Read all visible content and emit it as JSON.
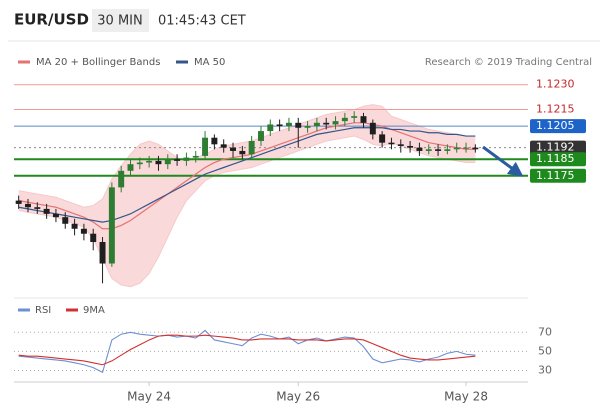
{
  "header": {
    "symbol": "EUR/USD",
    "timeframe": "30 MIN",
    "time": "01:45:43 CET"
  },
  "chart_data": {
    "type": "candlestick",
    "credit": "Research © 2019 Trading Central",
    "categories": [
      null,
      null,
      null,
      null,
      null,
      null,
      null,
      null,
      null,
      null,
      null,
      null,
      null,
      null,
      "May 24",
      null,
      null,
      null,
      null,
      null,
      null,
      null,
      null,
      null,
      null,
      null,
      null,
      null,
      null,
      null,
      "May 26",
      null,
      null,
      null,
      null,
      null,
      null,
      null,
      null,
      null,
      null,
      null,
      null,
      null,
      null,
      null,
      null,
      null,
      "May 28",
      null
    ],
    "open": [
      1.116,
      1.1158,
      1.1156,
      1.1155,
      1.1152,
      1.115,
      1.1146,
      1.1143,
      1.114,
      1.1135,
      1.1122,
      1.1168,
      1.1178,
      1.1182,
      1.1183,
      1.1184,
      1.1182,
      1.1185,
      1.1184,
      1.1186,
      1.1187,
      1.1198,
      1.1194,
      1.1192,
      1.119,
      1.1188,
      1.1196,
      1.1202,
      1.1206,
      1.1205,
      1.1207,
      1.1204,
      1.1205,
      1.1207,
      1.1206,
      1.1208,
      1.121,
      1.1211,
      1.1207,
      1.12,
      1.1195,
      1.1194,
      1.1193,
      1.1192,
      1.119,
      1.1191,
      1.119,
      1.1191,
      1.1192,
      1.1192
    ],
    "high": [
      1.1163,
      1.1161,
      1.1159,
      1.1158,
      1.1155,
      1.1153,
      1.1149,
      1.1146,
      1.1143,
      1.1138,
      1.1171,
      1.1181,
      1.1185,
      1.1186,
      1.1187,
      1.1187,
      1.1188,
      1.1188,
      1.1189,
      1.119,
      1.1202,
      1.12,
      1.1197,
      1.1195,
      1.1193,
      1.1199,
      1.1205,
      1.1209,
      1.1209,
      1.121,
      1.121,
      1.1208,
      1.121,
      1.121,
      1.1211,
      1.1213,
      1.1214,
      1.1213,
      1.1209,
      1.1202,
      1.1198,
      1.1197,
      1.1196,
      1.1195,
      1.1194,
      1.1194,
      1.1194,
      1.1195,
      1.1195,
      1.1194
    ],
    "low": [
      1.1155,
      1.1153,
      1.1152,
      1.1149,
      1.1147,
      1.1143,
      1.1139,
      1.1136,
      1.113,
      1.111,
      1.112,
      1.1165,
      1.1175,
      1.1179,
      1.118,
      1.1178,
      1.1179,
      1.1181,
      1.1181,
      1.1183,
      1.1185,
      1.1191,
      1.1189,
      1.1186,
      1.1185,
      1.1186,
      1.1193,
      1.1199,
      1.1202,
      1.1202,
      1.1192,
      1.1201,
      1.1202,
      1.1203,
      1.1203,
      1.1205,
      1.1207,
      1.1204,
      1.1197,
      1.1192,
      1.1191,
      1.1189,
      1.1189,
      1.1187,
      1.1188,
      1.1187,
      1.1188,
      1.1189,
      1.1189,
      1.1189
    ],
    "close": [
      1.1158,
      1.1156,
      1.1155,
      1.1152,
      1.115,
      1.1146,
      1.1143,
      1.114,
      1.1135,
      1.1122,
      1.1168,
      1.1178,
      1.1182,
      1.1183,
      1.1184,
      1.1182,
      1.1185,
      1.1184,
      1.1186,
      1.1187,
      1.1198,
      1.1194,
      1.1192,
      1.119,
      1.1188,
      1.1196,
      1.1202,
      1.1206,
      1.1205,
      1.1207,
      1.1204,
      1.1205,
      1.1207,
      1.1206,
      1.1208,
      1.121,
      1.1211,
      1.1207,
      1.12,
      1.1195,
      1.1194,
      1.1193,
      1.1192,
      1.119,
      1.1191,
      1.119,
      1.1191,
      1.1192,
      1.1192,
      1.1191
    ],
    "up_color": "#2e7d32",
    "down_color": "#1f1f1f",
    "ylim": [
      1.1106,
      1.1254
    ],
    "series": [
      {
        "name": "MA 20 + Bollinger Bands",
        "color": "#e57373",
        "band_color": "#f6c9c9",
        "values": [
          1.116,
          1.1159,
          1.1158,
          1.1157,
          1.1156,
          1.1154,
          1.1152,
          1.115,
          1.1147,
          1.1143,
          1.1143,
          1.1145,
          1.1148,
          1.1152,
          1.1156,
          1.116,
          1.1164,
          1.1168,
          1.1172,
          1.1176,
          1.118,
          1.1183,
          1.1185,
          1.1186,
          1.1187,
          1.1188,
          1.119,
          1.1192,
          1.1194,
          1.1196,
          1.1198,
          1.12,
          1.1202,
          1.1204,
          1.1205,
          1.1206,
          1.1207,
          1.1207,
          1.1206,
          1.1205,
          1.1203,
          1.1201,
          1.1199,
          1.1197,
          1.1195,
          1.1194,
          1.1193,
          1.1192,
          1.1191,
          1.1191
        ],
        "upper": [
          1.1166,
          1.1165,
          1.1164,
          1.1163,
          1.1162,
          1.116,
          1.1158,
          1.1156,
          1.1157,
          1.1161,
          1.1173,
          1.1181,
          1.1188,
          1.1194,
          1.1196,
          1.1194,
          1.119,
          1.1186,
          1.1184,
          1.1186,
          1.1188,
          1.1191,
          1.1193,
          1.1194,
          1.1195,
          1.1196,
          1.1198,
          1.12,
          1.1202,
          1.1204,
          1.1206,
          1.1208,
          1.121,
          1.1212,
          1.1213,
          1.1214,
          1.1215,
          1.1217,
          1.1218,
          1.1217,
          1.1211,
          1.1209,
          1.1207,
          1.1205,
          1.1203,
          1.1202,
          1.1201,
          1.12,
          1.1199,
          1.1199
        ],
        "lower": [
          1.1154,
          1.1153,
          1.1152,
          1.1151,
          1.115,
          1.1148,
          1.1146,
          1.1144,
          1.1137,
          1.1125,
          1.1113,
          1.1109,
          1.1108,
          1.111,
          1.1116,
          1.1126,
          1.1138,
          1.115,
          1.116,
          1.1166,
          1.1172,
          1.1175,
          1.1177,
          1.1178,
          1.1179,
          1.118,
          1.1182,
          1.1184,
          1.1186,
          1.1188,
          1.119,
          1.1192,
          1.1194,
          1.1196,
          1.1197,
          1.1198,
          1.1199,
          1.1197,
          1.1194,
          1.1193,
          1.1195,
          1.1193,
          1.1191,
          1.1189,
          1.1187,
          1.1186,
          1.1185,
          1.1184,
          1.1183,
          1.1183
        ]
      },
      {
        "name": "MA 50",
        "color": "#34568b",
        "values": [
          1.1156,
          1.1155,
          1.1154,
          1.1153,
          1.1152,
          1.1151,
          1.115,
          1.1149,
          1.1148,
          1.1147,
          1.1148,
          1.115,
          1.1152,
          1.1155,
          1.1158,
          1.1161,
          1.1164,
          1.1167,
          1.117,
          1.1173,
          1.1176,
          1.1178,
          1.118,
          1.1182,
          1.1184,
          1.1186,
          1.1188,
          1.119,
          1.1192,
          1.1194,
          1.1196,
          1.1198,
          1.12,
          1.1201,
          1.1202,
          1.1203,
          1.1204,
          1.1204,
          1.1204,
          1.1204,
          1.1203,
          1.1203,
          1.1202,
          1.1202,
          1.1201,
          1.1201,
          1.12,
          1.12,
          1.1199,
          1.1199
        ]
      }
    ],
    "levels": [
      {
        "value": 1.123,
        "label": "1.1230",
        "color": "#f19a9a",
        "text_color": "#c62828"
      },
      {
        "value": 1.1215,
        "label": "1.1215",
        "color": "#f19a9a",
        "text_color": "#c62828"
      },
      {
        "value": 1.1205,
        "label": "1.1205",
        "color": "#5b86c5",
        "fill": "#1e63c8",
        "text_color": "#ffffff"
      },
      {
        "value": 1.1192,
        "label": "1.1192",
        "color": "#8a8a8a",
        "fill": "#333333",
        "text_color": "#ffffff",
        "dashed": true
      },
      {
        "value": 1.1185,
        "label": "1.1185",
        "color": "#1e8a1e",
        "fill": "#1e8a1e",
        "text_color": "#ffffff",
        "width": 2
      },
      {
        "value": 1.1175,
        "label": "1.1175",
        "color": "#1e8a1e",
        "fill": "#1e8a1e",
        "text_color": "#ffffff",
        "width": 2
      }
    ],
    "rsi_panel": {
      "type": "line",
      "ylim": [
        20,
        85
      ],
      "yticks": [
        70,
        50,
        30
      ],
      "grid": true,
      "series": [
        {
          "name": "RSI",
          "color": "#6d8fd3",
          "values": [
            45,
            44,
            43,
            42,
            41,
            40,
            38,
            36,
            33,
            28,
            62,
            68,
            70,
            68,
            67,
            66,
            67,
            65,
            66,
            64,
            72,
            62,
            60,
            58,
            56,
            64,
            68,
            66,
            63,
            65,
            58,
            62,
            64,
            61,
            63,
            65,
            64,
            55,
            42,
            38,
            40,
            42,
            41,
            39,
            42,
            44,
            48,
            50,
            47,
            46
          ]
        },
        {
          "name": "9MA",
          "color": "#d32f2f",
          "values": [
            46,
            45,
            45,
            44,
            43,
            42,
            41,
            40,
            38,
            36,
            40,
            46,
            52,
            57,
            62,
            66,
            67,
            67,
            66,
            66,
            67,
            66,
            65,
            64,
            62,
            62,
            63,
            63,
            63,
            63,
            62,
            62,
            62,
            61,
            62,
            63,
            63,
            62,
            58,
            54,
            50,
            46,
            43,
            42,
            41,
            41,
            42,
            43,
            44,
            45
          ]
        }
      ]
    }
  }
}
